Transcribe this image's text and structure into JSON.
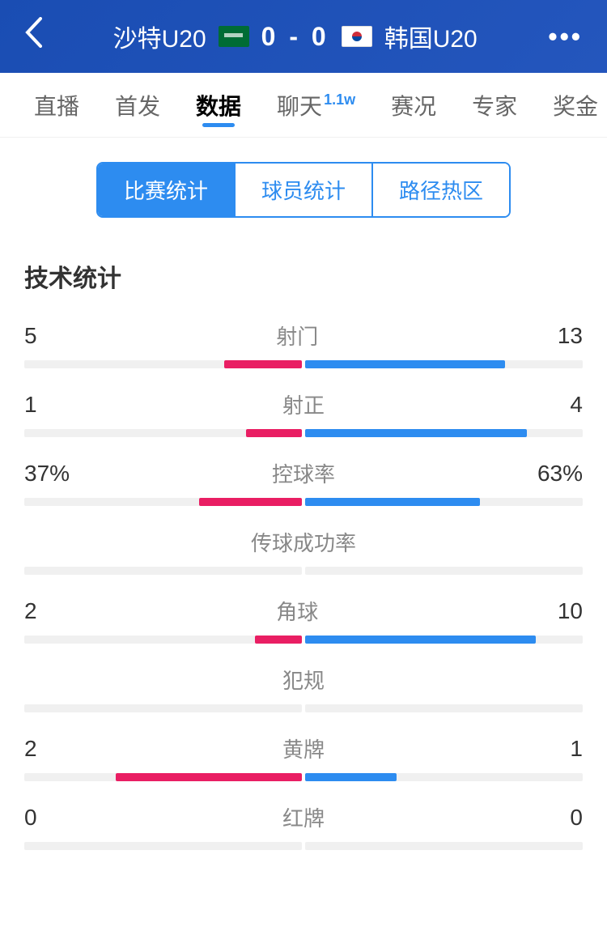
{
  "header": {
    "team_home": "沙特U20",
    "team_away": "韩国U20",
    "score_home": "0",
    "score_away": "0",
    "score_sep": "-"
  },
  "tabs": [
    {
      "label": "直播",
      "active": false,
      "badge": ""
    },
    {
      "label": "首发",
      "active": false,
      "badge": ""
    },
    {
      "label": "数据",
      "active": true,
      "badge": ""
    },
    {
      "label": "聊天",
      "active": false,
      "badge": "1.1w"
    },
    {
      "label": "赛况",
      "active": false,
      "badge": ""
    },
    {
      "label": "专家",
      "active": false,
      "badge": ""
    },
    {
      "label": "奖金",
      "active": false,
      "badge": ""
    }
  ],
  "sub_tabs": [
    {
      "label": "比赛统计",
      "active": true
    },
    {
      "label": "球员统计",
      "active": false
    },
    {
      "label": "路径热区",
      "active": false
    }
  ],
  "section_title": "技术统计",
  "stats": [
    {
      "label": "射门",
      "home": "5",
      "away": "13",
      "home_pct": 28,
      "away_pct": 72
    },
    {
      "label": "射正",
      "home": "1",
      "away": "4",
      "home_pct": 20,
      "away_pct": 80
    },
    {
      "label": "控球率",
      "home": "37%",
      "away": "63%",
      "home_pct": 37,
      "away_pct": 63
    },
    {
      "label": "传球成功率",
      "home": "",
      "away": "",
      "home_pct": 0,
      "away_pct": 0
    },
    {
      "label": "角球",
      "home": "2",
      "away": "10",
      "home_pct": 17,
      "away_pct": 83
    },
    {
      "label": "犯规",
      "home": "",
      "away": "",
      "home_pct": 0,
      "away_pct": 0
    },
    {
      "label": "黄牌",
      "home": "2",
      "away": "1",
      "home_pct": 67,
      "away_pct": 33
    },
    {
      "label": "红牌",
      "home": "0",
      "away": "0",
      "home_pct": 0,
      "away_pct": 0
    }
  ],
  "colors": {
    "home_bar": "#e91e63",
    "away_bar": "#2d8cf0",
    "header_bg": "#1a4db3",
    "track": "#f0f0f0"
  }
}
